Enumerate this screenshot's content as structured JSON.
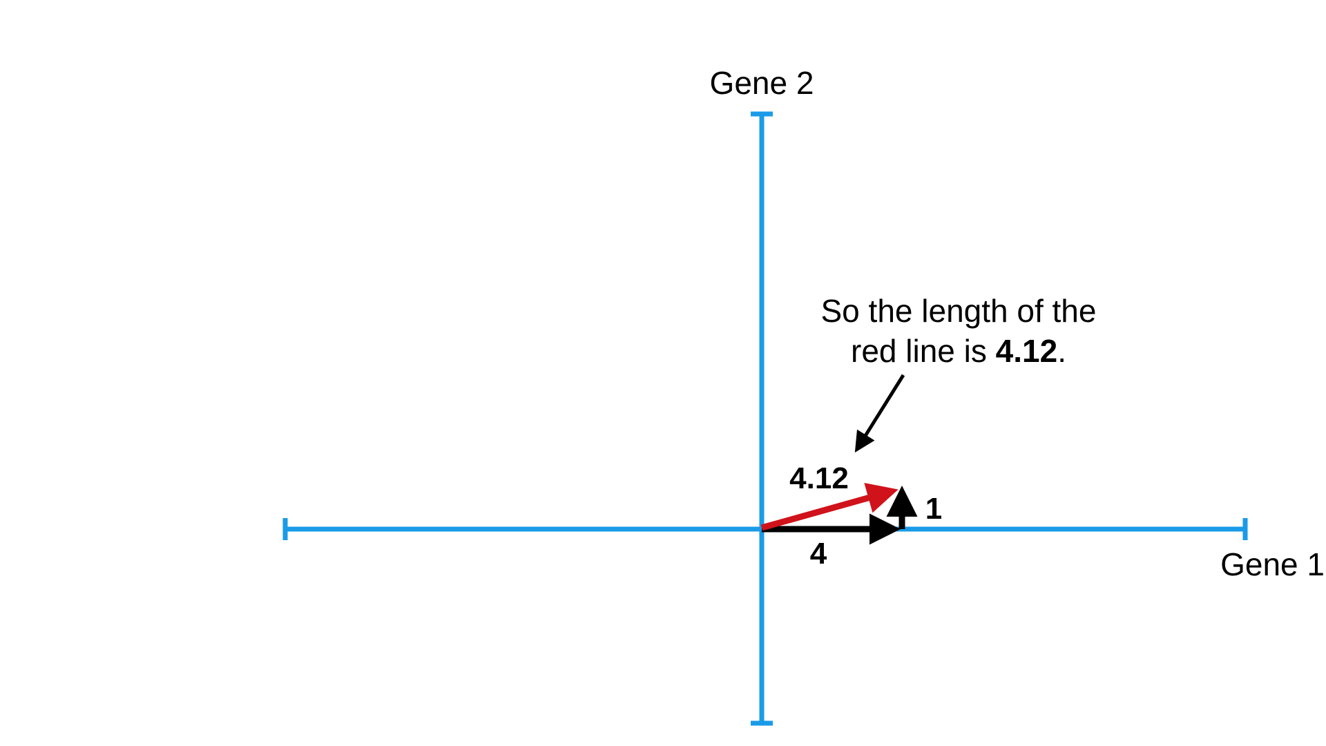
{
  "axes": {
    "x_label": "Gene 1",
    "y_label": "Gene 2",
    "axis_color": "#1a9be8"
  },
  "vectors": {
    "horizontal_label": "4",
    "vertical_label": "1",
    "hypotenuse_label": "4.12",
    "leg_color": "#000000",
    "hypotenuse_color": "#d0121b"
  },
  "annotation": {
    "line1": "So the length of the",
    "line2_prefix": "red line is ",
    "line2_value": "4.12",
    "line2_suffix": "."
  }
}
